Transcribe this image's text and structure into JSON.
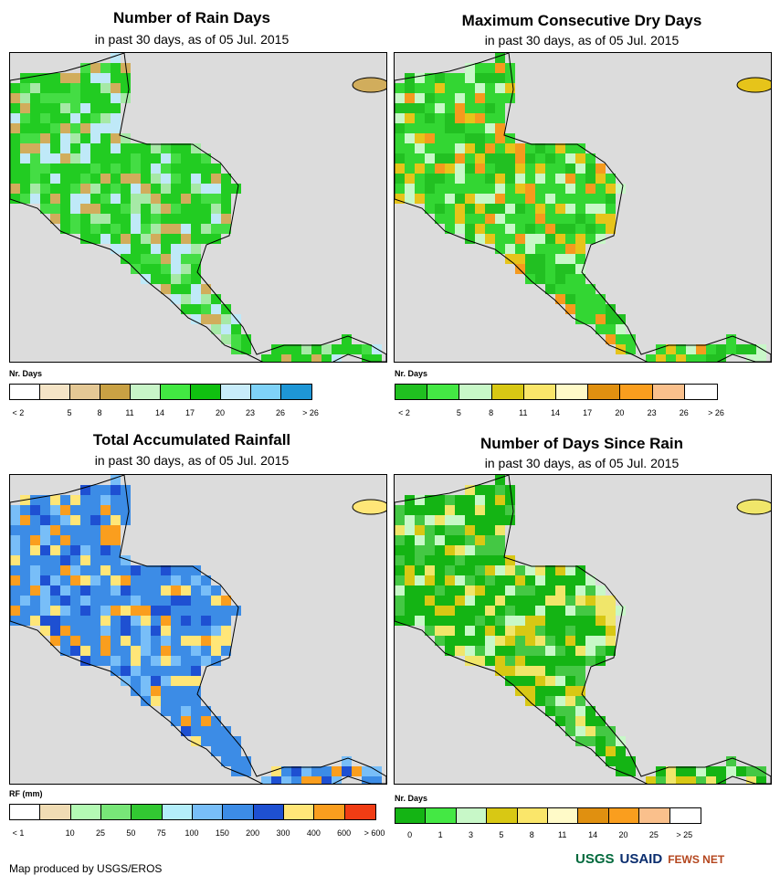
{
  "panels": [
    {
      "title": "Number of Rain Days",
      "subtitle": "in past 30 days, as of 05 Jul. 2015",
      "legend_title": "Nr. Days",
      "colors": [
        "#ffffff",
        "#f5e4c6",
        "#e4c895",
        "#c9a144",
        "#c8f5c8",
        "#42e842",
        "#10c010",
        "#c8ecfa",
        "#7fd2f8",
        "#1e96d6"
      ],
      "ticks": [
        "< 2",
        "5",
        "8",
        "11",
        "14",
        "17",
        "20",
        "23",
        "26",
        "> 26"
      ],
      "map_fill": [
        "#22cc22",
        "#44dd44",
        "#bfe9f8",
        "#d1ad5c",
        "#a6e9a6"
      ]
    },
    {
      "title": "Maximum Consecutive Dry Days",
      "subtitle": "in past 30 days, as of 05 Jul. 2015",
      "legend_title": "Nr. Days",
      "colors": [
        "#20c020",
        "#44e844",
        "#c8f8c8",
        "#d8c814",
        "#fae66a",
        "#fffac8",
        "#e09010",
        "#fa9e1e",
        "#fac08c",
        "#ffffff"
      ],
      "ticks": [
        "< 2",
        "5",
        "8",
        "11",
        "14",
        "17",
        "20",
        "23",
        "26",
        "> 26"
      ],
      "map_fill": [
        "#33d633",
        "#22c022",
        "#c8f8c8",
        "#e6c41a",
        "#f59a1e"
      ]
    },
    {
      "title": "Total Accumulated Rainfall",
      "subtitle": "in past 30 days, as of 05 Jul. 2015",
      "legend_title": "RF (mm)",
      "colors": [
        "#ffffff",
        "#f0dcb4",
        "#b4fab4",
        "#78e678",
        "#32c832",
        "#b4eefa",
        "#78bef8",
        "#3c8ce6",
        "#1e50d2",
        "#ffe678",
        "#fa9e1e",
        "#f03c14"
      ],
      "ticks": [
        "< 1",
        "10",
        "25",
        "50",
        "75",
        "100",
        "150",
        "200",
        "300",
        "400",
        "600",
        "> 600"
      ],
      "map_fill": [
        "#3c8ce6",
        "#78bef8",
        "#1e50d2",
        "#ffe678",
        "#fa9e1e"
      ]
    },
    {
      "title": "Number of Days Since Rain",
      "subtitle": "in past 30 days, as of 05 Jul. 2015",
      "legend_title": "Nr. Days",
      "colors": [
        "#14b414",
        "#44e844",
        "#c8f8c8",
        "#d8c814",
        "#fae66a",
        "#fffac8",
        "#e09010",
        "#fa9e1e",
        "#fac08c",
        "#ffffff"
      ],
      "ticks": [
        "0",
        "1",
        "3",
        "5",
        "8",
        "11",
        "14",
        "20",
        "25",
        "> 25"
      ],
      "map_fill": [
        "#14b414",
        "#44c844",
        "#d8c814",
        "#f0e66a",
        "#c8f8c8"
      ]
    }
  ],
  "credit": "Map produced by USGS/EROS",
  "logos": {
    "usgs": "USGS",
    "usaid": "USAID",
    "fewsnet": "FEWS NET"
  }
}
